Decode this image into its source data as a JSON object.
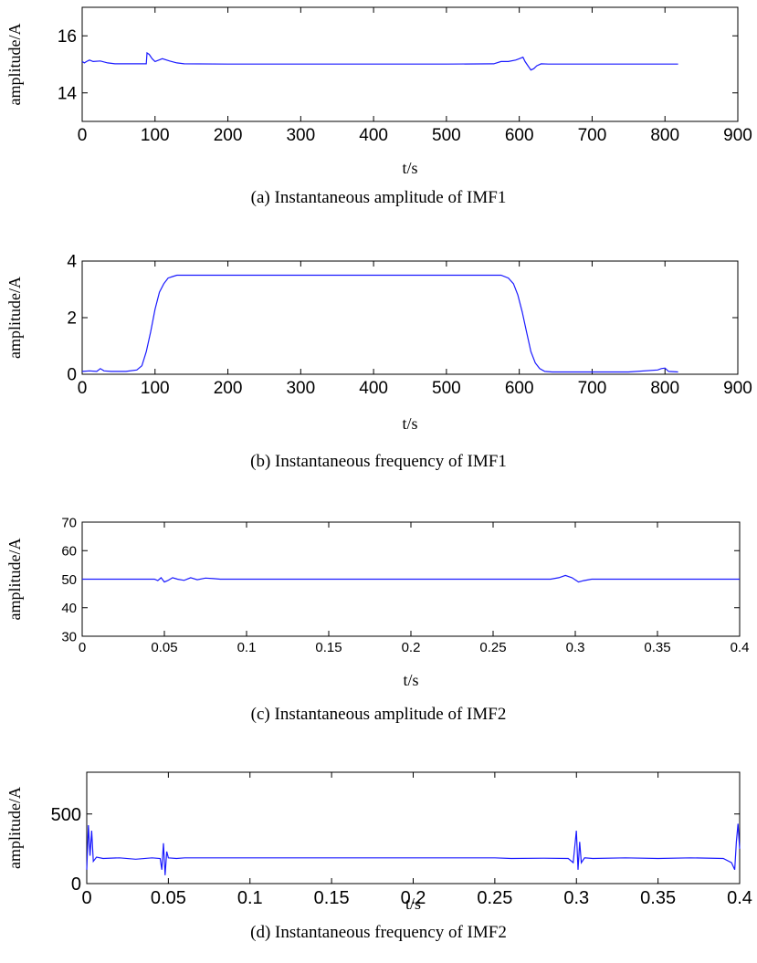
{
  "chart_data": [
    {
      "type": "line",
      "caption": "(a) Instantaneous amplitude of IMF1",
      "xlabel": "t/s",
      "ylabel": "amplitude/A",
      "xlim": [
        0,
        900
      ],
      "ylim": [
        13,
        17
      ],
      "xticks": [
        0,
        100,
        200,
        300,
        400,
        500,
        600,
        700,
        800,
        900
      ],
      "xtick_labels": [
        "0",
        "100",
        "200",
        "300",
        "400",
        "500",
        "600",
        "700",
        "800",
        "900"
      ],
      "yticks": [
        14,
        16
      ],
      "ytick_labels": [
        "14",
        "16"
      ],
      "line_color": "#1a1aff",
      "series": [
        {
          "x": [
            0,
            3,
            6,
            10,
            15,
            25,
            35,
            45,
            60,
            88,
            89,
            92,
            96,
            100,
            110,
            120,
            130,
            140,
            200,
            300,
            400,
            500,
            565,
            575,
            585,
            595,
            600,
            605,
            608,
            612,
            616,
            620,
            624,
            630,
            640,
            700,
            760,
            818
          ],
          "y": [
            15.1,
            15.05,
            15.1,
            15.15,
            15.1,
            15.12,
            15.05,
            15.02,
            15.02,
            15.02,
            15.4,
            15.35,
            15.2,
            15.1,
            15.2,
            15.12,
            15.05,
            15.02,
            15.01,
            15.01,
            15.01,
            15.01,
            15.02,
            15.1,
            15.1,
            15.15,
            15.2,
            15.25,
            15.1,
            14.95,
            14.8,
            14.85,
            14.95,
            15.02,
            15.01,
            15.01,
            15.01,
            15.01
          ]
        }
      ]
    },
    {
      "type": "line",
      "caption": "(b) Instantaneous frequency of IMF1",
      "xlabel": "t/s",
      "ylabel": "amplitude/A",
      "xlim": [
        0,
        900
      ],
      "ylim": [
        0,
        4
      ],
      "xticks": [
        0,
        100,
        200,
        300,
        400,
        500,
        600,
        700,
        800,
        900
      ],
      "xtick_labels": [
        "0",
        "100",
        "200",
        "300",
        "400",
        "500",
        "600",
        "700",
        "800",
        "900"
      ],
      "yticks": [
        0,
        2,
        4
      ],
      "ytick_labels": [
        "0",
        "2",
        "4"
      ],
      "line_color": "#1a1aff",
      "series": [
        {
          "x": [
            0,
            10,
            20,
            25,
            30,
            40,
            60,
            75,
            82,
            88,
            94,
            100,
            106,
            112,
            118,
            124,
            130,
            200,
            300,
            400,
            500,
            575,
            585,
            592,
            598,
            604,
            610,
            616,
            622,
            628,
            635,
            645,
            700,
            750,
            790,
            795,
            800,
            805,
            818
          ],
          "y": [
            0.1,
            0.12,
            0.1,
            0.2,
            0.12,
            0.1,
            0.1,
            0.15,
            0.3,
            0.8,
            1.5,
            2.3,
            2.9,
            3.2,
            3.4,
            3.45,
            3.5,
            3.5,
            3.5,
            3.5,
            3.5,
            3.5,
            3.4,
            3.2,
            2.8,
            2.2,
            1.5,
            0.8,
            0.4,
            0.2,
            0.1,
            0.08,
            0.08,
            0.08,
            0.15,
            0.2,
            0.22,
            0.1,
            0.08
          ]
        }
      ]
    },
    {
      "type": "line",
      "caption": "(c) Instantaneous amplitude of IMF2",
      "xlabel": "t/s",
      "ylabel": "amplitude/A",
      "xlim": [
        0,
        0.4
      ],
      "ylim": [
        30,
        70
      ],
      "xticks": [
        0,
        0.05,
        0.1,
        0.15,
        0.2,
        0.25,
        0.3,
        0.35,
        0.4
      ],
      "xtick_labels": [
        "0",
        "0.05",
        "0.1",
        "0.15",
        "0.2",
        "0.25",
        "0.3",
        "0.35",
        "0.4"
      ],
      "yticks": [
        30,
        40,
        50,
        60,
        70
      ],
      "ytick_labels": [
        "30",
        "40",
        "50",
        "60",
        "70"
      ],
      "line_color": "#1a1aff",
      "series": [
        {
          "x": [
            0,
            0.044,
            0.046,
            0.048,
            0.05,
            0.052,
            0.055,
            0.058,
            0.062,
            0.066,
            0.07,
            0.075,
            0.08,
            0.084,
            0.09,
            0.15,
            0.2,
            0.25,
            0.285,
            0.29,
            0.294,
            0.298,
            0.302,
            0.305,
            0.31,
            0.35,
            0.4
          ],
          "y": [
            50,
            50,
            49.5,
            50.5,
            49,
            49.5,
            50.5,
            50,
            49.6,
            50.5,
            49.8,
            50.4,
            50.2,
            50,
            50,
            50,
            50,
            50,
            50,
            50.5,
            51.3,
            50.5,
            49,
            49.5,
            50,
            50,
            50
          ]
        }
      ]
    },
    {
      "type": "line",
      "caption": "(d) Instantaneous frequency of IMF2",
      "xlabel": "t/s",
      "ylabel": "amplitude/A",
      "xlim": [
        0,
        0.4
      ],
      "ylim": [
        0,
        800
      ],
      "xticks": [
        0,
        0.05,
        0.1,
        0.15,
        0.2,
        0.25,
        0.3,
        0.35,
        0.4
      ],
      "xtick_labels": [
        "0",
        "0.05",
        "0.1",
        "0.15",
        "0.2",
        "0.25",
        "0.3",
        "0.35",
        "0.4"
      ],
      "yticks": [
        0,
        500
      ],
      "ytick_labels": [
        "0",
        "500"
      ],
      "line_color": "#1a1aff",
      "series": [
        {
          "x": [
            0,
            0.001,
            0.002,
            0.003,
            0.004,
            0.006,
            0.01,
            0.02,
            0.03,
            0.04,
            0.045,
            0.046,
            0.047,
            0.048,
            0.049,
            0.05,
            0.055,
            0.06,
            0.08,
            0.1,
            0.15,
            0.2,
            0.25,
            0.26,
            0.28,
            0.295,
            0.298,
            0.3,
            0.301,
            0.302,
            0.303,
            0.305,
            0.31,
            0.33,
            0.35,
            0.37,
            0.39,
            0.395,
            0.397,
            0.398,
            0.399,
            0.4
          ],
          "y": [
            100,
            420,
            200,
            380,
            160,
            190,
            180,
            185,
            175,
            185,
            180,
            100,
            290,
            60,
            230,
            185,
            180,
            185,
            185,
            185,
            185,
            185,
            185,
            180,
            182,
            180,
            150,
            380,
            100,
            300,
            150,
            185,
            180,
            185,
            180,
            185,
            180,
            150,
            100,
            300,
            430,
            250
          ]
        }
      ]
    }
  ]
}
